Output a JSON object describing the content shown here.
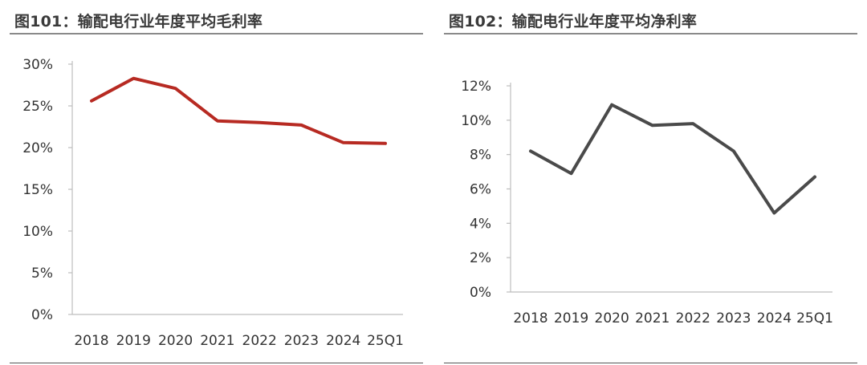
{
  "chart_data": [
    {
      "type": "line",
      "title": "图101：输配电行业年度平均毛利率",
      "categories": [
        "2018",
        "2019",
        "2020",
        "2021",
        "2022",
        "2023",
        "2024",
        "25Q1"
      ],
      "series": [
        {
          "values": [
            25.6,
            28.3,
            27.1,
            23.2,
            23.0,
            22.7,
            20.6,
            20.5
          ]
        }
      ],
      "yticks": [
        "0%",
        "5%",
        "10%",
        "15%",
        "20%",
        "25%",
        "30%"
      ],
      "ylim": [
        0,
        30
      ],
      "line_color": "#b72a22",
      "grid": false
    },
    {
      "type": "line",
      "title": "图102：输配电行业年度平均净利率",
      "categories": [
        "2018",
        "2019",
        "2020",
        "2021",
        "2022",
        "2023",
        "2024",
        "25Q1"
      ],
      "series": [
        {
          "values": [
            8.2,
            6.9,
            10.9,
            9.7,
            9.8,
            8.2,
            4.6,
            6.7
          ]
        }
      ],
      "yticks": [
        "0%",
        "2%",
        "4%",
        "6%",
        "8%",
        "10%",
        "12%"
      ],
      "ylim": [
        0,
        12
      ],
      "line_color": "#4a4a4a",
      "grid": false
    }
  ]
}
